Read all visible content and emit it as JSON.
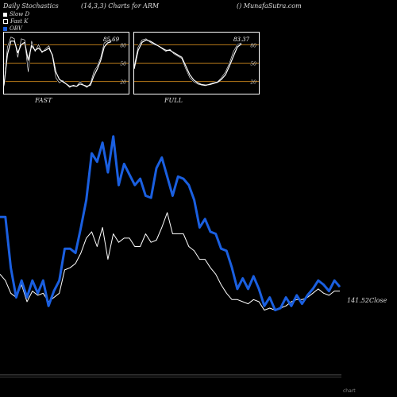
{
  "header": {
    "title_left": "Daily Stochastics",
    "title_mid": "(14,3,3) Charts for ARM",
    "title_right": "() MunafaSutra.com"
  },
  "legend": [
    {
      "label": "Slow  D",
      "color": "#ffffff"
    },
    {
      "label": "Fast K",
      "color": "#000000"
    },
    {
      "label": "OBV",
      "color": "#1a5fe0"
    }
  ],
  "colors": {
    "obv": "#1a5fe0",
    "price": "#ffffff",
    "band": "#b87a1a",
    "background": "#000000"
  },
  "panels": {
    "fast": {
      "label": "FAST",
      "value_label": "85.69",
      "level_80": "80",
      "level_50": "50",
      "level_20": "20"
    },
    "full": {
      "label": "FULL",
      "value_label": "83.37",
      "level_80": "80",
      "level_50": "50",
      "level_20": "20"
    }
  },
  "close_label": "141.52Close",
  "footer": "chart",
  "chart_data": [
    {
      "type": "line",
      "name": "fast",
      "ylim": [
        0,
        100
      ],
      "series": [
        {
          "name": "Fast K",
          "values": [
            10,
            78,
            95,
            92,
            60,
            92,
            90,
            35,
            88,
            70,
            82,
            68,
            75,
            80,
            62,
            25,
            16,
            20,
            14,
            8,
            12,
            10,
            18,
            12,
            8,
            15,
            35,
            45,
            60,
            85,
            88,
            90
          ]
        },
        {
          "name": "Slow D",
          "values": [
            12,
            65,
            88,
            88,
            68,
            82,
            86,
            55,
            80,
            72,
            76,
            70,
            72,
            76,
            64,
            35,
            22,
            18,
            14,
            10,
            11,
            10,
            14,
            12,
            10,
            12,
            28,
            40,
            55,
            78,
            85,
            87
          ]
        }
      ]
    },
    {
      "type": "line",
      "name": "full",
      "ylim": [
        0,
        100
      ],
      "series": [
        {
          "name": "Fast K",
          "values": [
            45,
            78,
            90,
            92,
            86,
            82,
            80,
            75,
            70,
            74,
            66,
            62,
            58,
            40,
            25,
            18,
            14,
            12,
            11,
            14,
            16,
            18,
            25,
            35,
            50,
            70,
            82,
            85
          ]
        },
        {
          "name": "Slow D",
          "values": [
            40,
            72,
            86,
            90,
            88,
            84,
            80,
            76,
            72,
            72,
            68,
            64,
            60,
            45,
            30,
            21,
            16,
            13,
            12,
            13,
            15,
            17,
            22,
            30,
            45,
            62,
            78,
            83
          ]
        }
      ]
    },
    {
      "type": "line",
      "name": "main",
      "ylim": [
        0,
        100
      ],
      "series": [
        {
          "name": "OBV",
          "values": [
            52,
            52,
            28,
            14,
            22,
            14,
            22,
            16,
            22,
            10,
            17,
            22,
            37,
            37,
            35,
            47,
            60,
            82,
            78,
            87,
            73,
            90,
            67,
            77,
            72,
            67,
            70,
            62,
            61,
            75,
            80,
            71,
            62,
            71,
            70,
            67,
            60,
            47,
            51,
            45,
            44,
            37,
            36,
            28,
            18,
            23,
            18,
            24,
            18,
            10,
            14,
            8,
            9,
            14,
            10,
            15,
            11,
            15,
            18,
            22,
            20,
            17,
            22,
            19
          ]
        },
        {
          "name": "Price",
          "values": [
            25,
            22,
            16,
            14,
            20,
            12,
            17,
            15,
            16,
            12,
            14,
            16,
            27,
            28,
            30,
            35,
            42,
            45,
            38,
            47,
            32,
            44,
            40,
            42,
            42,
            38,
            38,
            44,
            40,
            41,
            47,
            54,
            44,
            44,
            44,
            38,
            36,
            32,
            32,
            28,
            25,
            20,
            16,
            13,
            13,
            12,
            11,
            13,
            12,
            8,
            9,
            8,
            9,
            10,
            12,
            13,
            13,
            14,
            16,
            18,
            16,
            15,
            17,
            17
          ]
        }
      ]
    }
  ]
}
